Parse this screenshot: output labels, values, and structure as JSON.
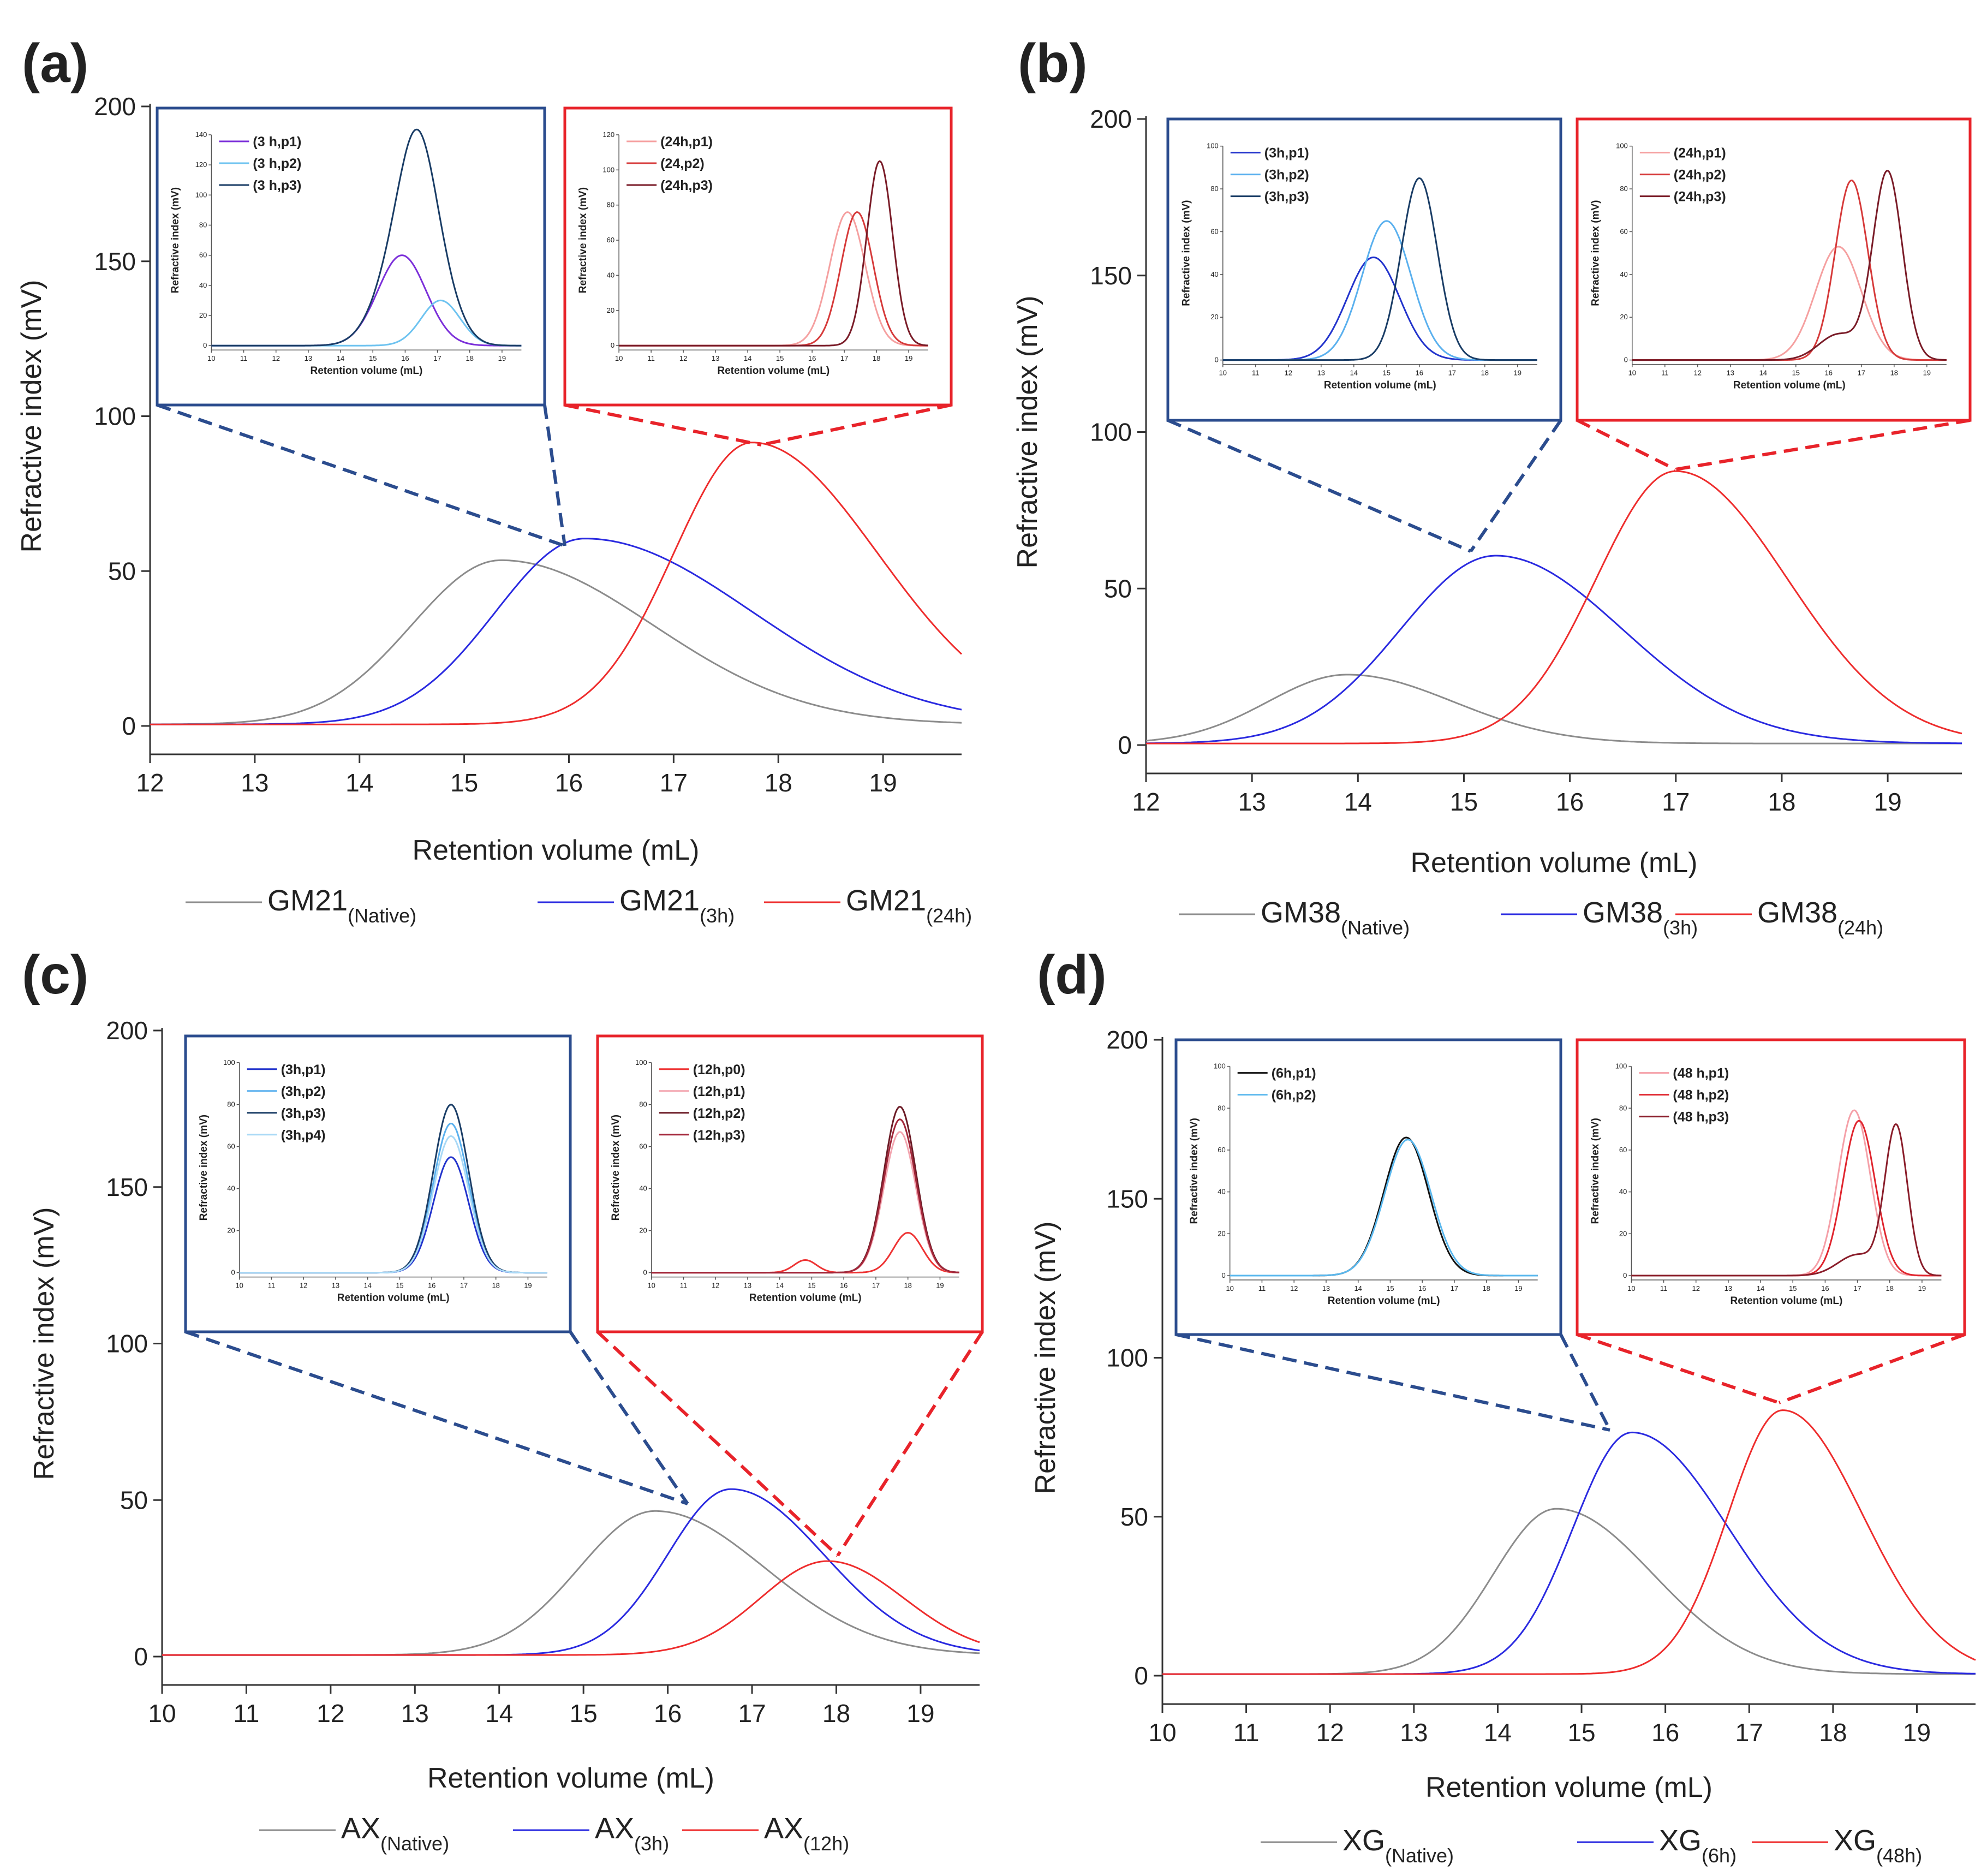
{
  "chart_data": [
    {
      "panel": "(a)",
      "type": "line",
      "xlabel": "Retention volume (mL)",
      "ylabel": "Refractive index (mV)",
      "xlim": [
        12,
        19.75
      ],
      "ylim": [
        0,
        200
      ],
      "xticks": [
        "12",
        "13",
        "14",
        "15",
        "16",
        "17",
        "18",
        "19"
      ],
      "yticks": [
        "0",
        "50",
        "100",
        "150",
        "200"
      ],
      "series": [
        {
          "name": "GM21",
          "sub": "(Native)",
          "color": "#8c8c8c",
          "peaks": [
            [
              53,
              15.35,
              0.85,
              1.45
            ]
          ],
          "base": 0.5
        },
        {
          "name": "GM21",
          "sub": "(3h)",
          "color": "#2a2ae0",
          "peaks": [
            [
              60,
              16.15,
              0.85,
              1.6
            ]
          ],
          "base": 0.5
        },
        {
          "name": "GM21",
          "sub": "(24h)",
          "color": "#ee2d2d",
          "peaks": [
            [
              91,
              17.75,
              0.75,
              1.2
            ]
          ],
          "base": 0.5
        }
      ],
      "insets": [
        {
          "frame": "#2b4c8e",
          "xlabel": "Retention volume (mL)",
          "ylabel": "Refractive index (mV)",
          "xlim": [
            10,
            19.6
          ],
          "ylim": [
            0,
            140
          ],
          "xticks": [
            "10",
            "11",
            "12",
            "13",
            "14",
            "15",
            "16",
            "17",
            "18",
            "19"
          ],
          "yticks": [
            "0",
            "20",
            "40",
            "60",
            "80",
            "100",
            "120",
            "140"
          ],
          "series": [
            {
              "name": "(3 h,p1)",
              "color": "#7b2fd9",
              "peaks": [
                [
                  60,
                  15.9,
                  0.75,
                  0.75
                ]
              ]
            },
            {
              "name": "(3 h,p2)",
              "color": "#6ec3f0",
              "peaks": [
                [
                  30,
                  17.1,
                  0.6,
                  0.6
                ]
              ]
            },
            {
              "name": "(3 h,p3)",
              "color": "#1a3d66",
              "peaks": [
                [
                  60,
                  15.9,
                  0.75,
                  0.75
                ],
                [
                  80,
                  16.4,
                  0.55,
                  0.55
                ],
                [
                  30,
                  17.1,
                  0.6,
                  0.6
                ]
              ]
            }
          ]
        },
        {
          "frame": "#e8232a",
          "xlabel": "Retention volume (mL)",
          "ylabel": "Refractive index (mV)",
          "xlim": [
            10,
            19.6
          ],
          "ylim": [
            0,
            120
          ],
          "xticks": [
            "10",
            "11",
            "12",
            "13",
            "14",
            "15",
            "16",
            "17",
            "18",
            "19"
          ],
          "yticks": [
            "0",
            "20",
            "40",
            "60",
            "80",
            "100",
            "120"
          ],
          "series": [
            {
              "name": "(24h,p1)",
              "color": "#f5a0a0",
              "peaks": [
                [
                  76,
                  17.1,
                  0.55,
                  0.55
                ]
              ]
            },
            {
              "name": "(24,p2)",
              "color": "#d63a3a",
              "peaks": [
                [
                  76,
                  17.4,
                  0.5,
                  0.5
                ]
              ]
            },
            {
              "name": "(24h,p3)",
              "color": "#7a1c28",
              "peaks": [
                [
                  105,
                  18.1,
                  0.4,
                  0.4
                ]
              ]
            }
          ]
        }
      ]
    },
    {
      "panel": "(b)",
      "type": "line",
      "xlabel": "Retention volume (mL)",
      "ylabel": "Refractive index (mV)",
      "xlim": [
        12,
        19.7
      ],
      "ylim": [
        0,
        200
      ],
      "xticks": [
        "12",
        "13",
        "14",
        "15",
        "16",
        "17",
        "18",
        "19"
      ],
      "yticks": [
        "0",
        "50",
        "100",
        "150",
        "200"
      ],
      "series": [
        {
          "name": "GM38",
          "sub": "(Native)",
          "color": "#8c8c8c",
          "peaks": [
            [
              22,
              13.9,
              0.75,
              1.0
            ]
          ],
          "base": 0.5
        },
        {
          "name": "GM38",
          "sub": "(3h)",
          "color": "#2a2ae0",
          "peaks": [
            [
              60,
              15.3,
              0.9,
              1.2
            ]
          ],
          "base": 0.5
        },
        {
          "name": "GM38",
          "sub": "(24h)",
          "color": "#ee2d2d",
          "peaks": [
            [
              87,
              17.0,
              0.75,
              1.05
            ]
          ],
          "base": 0.5
        }
      ],
      "insets": [
        {
          "frame": "#2b4c8e",
          "xlabel": "Retention volume (mL)",
          "ylabel": "Refractive index (mV)",
          "xlim": [
            10,
            19.6
          ],
          "ylim": [
            0,
            100
          ],
          "xticks": [
            "10",
            "11",
            "12",
            "13",
            "14",
            "15",
            "16",
            "17",
            "18",
            "19"
          ],
          "yticks": [
            "0",
            "20",
            "40",
            "60",
            "80",
            "100"
          ],
          "series": [
            {
              "name": "(3h,p1)",
              "color": "#2233cc",
              "peaks": [
                [
                  48,
                  14.6,
                  0.8,
                  0.8
                ]
              ]
            },
            {
              "name": "(3h,p2)",
              "color": "#5ab0ee",
              "peaks": [
                [
                  65,
                  15.0,
                  0.75,
                  0.75
                ]
              ]
            },
            {
              "name": "(3h,p3)",
              "color": "#1a3d66",
              "peaks": [
                [
                  85,
                  16.0,
                  0.55,
                  0.55
                ]
              ]
            }
          ]
        },
        {
          "frame": "#e8232a",
          "xlabel": "Retention volume (mL)",
          "ylabel": "Refractive index (mV)",
          "xlim": [
            10,
            19.6
          ],
          "ylim": [
            0,
            100
          ],
          "xticks": [
            "10",
            "11",
            "12",
            "13",
            "14",
            "15",
            "16",
            "17",
            "18",
            "19"
          ],
          "yticks": [
            "0",
            "20",
            "40",
            "60",
            "80",
            "100"
          ],
          "series": [
            {
              "name": "(24h,p1)",
              "color": "#f5a0a0",
              "peaks": [
                [
                  53,
                  16.3,
                  0.7,
                  0.7
                ]
              ]
            },
            {
              "name": "(24h,p2)",
              "color": "#d63a3a",
              "peaks": [
                [
                  84,
                  16.7,
                  0.5,
                  0.5
                ]
              ]
            },
            {
              "name": "(24h,p3)",
              "color": "#7a1c28",
              "peaks": [
                [
                  88,
                  17.8,
                  0.45,
                  0.45
                ],
                [
                  12,
                  16.3,
                  0.6,
                  0.6
                ]
              ]
            }
          ]
        }
      ]
    },
    {
      "panel": "(c)",
      "type": "line",
      "xlabel": "Retention volume (mL)",
      "ylabel": "Refractive index (mV)",
      "xlim": [
        10,
        19.7
      ],
      "ylim": [
        0,
        200
      ],
      "xticks": [
        "10",
        "11",
        "12",
        "13",
        "14",
        "15",
        "16",
        "17",
        "18",
        "19"
      ],
      "yticks": [
        "0",
        "50",
        "100",
        "150",
        "200"
      ],
      "series": [
        {
          "name": "AX",
          "sub": "(Native)",
          "color": "#8c8c8c",
          "peaks": [
            [
              46,
              15.85,
              0.9,
              1.3
            ]
          ],
          "base": 0.5
        },
        {
          "name": "AX",
          "sub": "(3h)",
          "color": "#2a2ae0",
          "peaks": [
            [
              53,
              16.75,
              0.75,
              1.1
            ]
          ],
          "base": 0.5
        },
        {
          "name": "AX",
          "sub": "(12h)",
          "color": "#ee2d2d",
          "peaks": [
            [
              30,
              17.9,
              0.8,
              0.9
            ]
          ],
          "base": 0.5
        }
      ],
      "insets": [
        {
          "frame": "#2b4c8e",
          "xlabel": "Retention volume (mL)",
          "ylabel": "Refractive index (mV)",
          "xlim": [
            10,
            19.6
          ],
          "ylim": [
            0,
            100
          ],
          "xticks": [
            "10",
            "11",
            "12",
            "13",
            "14",
            "15",
            "16",
            "17",
            "18",
            "19"
          ],
          "yticks": [
            "0",
            "20",
            "40",
            "60",
            "80",
            "100"
          ],
          "series": [
            {
              "name": "(3h,p1)",
              "color": "#2233cc",
              "peaks": [
                [
                  55,
                  16.6,
                  0.55,
                  0.55
                ]
              ]
            },
            {
              "name": "(3h,p2)",
              "color": "#5ab0ee",
              "peaks": [
                [
                  71,
                  16.6,
                  0.55,
                  0.55
                ]
              ]
            },
            {
              "name": "(3h,p3)",
              "color": "#1a3d66",
              "peaks": [
                [
                  80,
                  16.6,
                  0.55,
                  0.55
                ]
              ]
            },
            {
              "name": "(3h,p4)",
              "color": "#a9d9f6",
              "peaks": [
                [
                  65,
                  16.6,
                  0.55,
                  0.55
                ]
              ]
            }
          ]
        },
        {
          "frame": "#e8232a",
          "xlabel": "Retention volume (mL)",
          "ylabel": "Refractive index (mV)",
          "xlim": [
            10,
            19.6
          ],
          "ylim": [
            0,
            100
          ],
          "xticks": [
            "10",
            "11",
            "12",
            "13",
            "14",
            "15",
            "16",
            "17",
            "18",
            "19"
          ],
          "yticks": [
            "0",
            "20",
            "40",
            "60",
            "80",
            "100"
          ],
          "series": [
            {
              "name": "(12h,p0)",
              "color": "#ee3333",
              "peaks": [
                [
                  6,
                  14.8,
                  0.35,
                  0.35
                ],
                [
                  19,
                  18.0,
                  0.45,
                  0.45
                ]
              ]
            },
            {
              "name": "(12h,p1)",
              "color": "#f3a6b0",
              "peaks": [
                [
                  67,
                  17.75,
                  0.5,
                  0.5
                ]
              ]
            },
            {
              "name": "(12h,p2)",
              "color": "#6b1a25",
              "peaks": [
                [
                  79,
                  17.75,
                  0.5,
                  0.5
                ]
              ]
            },
            {
              "name": "(12h,p3)",
              "color": "#a3273a",
              "peaks": [
                [
                  73,
                  17.75,
                  0.5,
                  0.5
                ]
              ]
            }
          ]
        }
      ]
    },
    {
      "panel": "(d)",
      "type": "line",
      "xlabel": "Retention volume (mL)",
      "ylabel": "Refractive index (mV)",
      "xlim": [
        10,
        19.7
      ],
      "ylim": [
        0,
        200
      ],
      "xticks": [
        "10",
        "11",
        "12",
        "13",
        "14",
        "15",
        "16",
        "17",
        "18",
        "19"
      ],
      "yticks": [
        "0",
        "50",
        "100",
        "150",
        "200"
      ],
      "series": [
        {
          "name": "XG",
          "sub": "(Native)",
          "color": "#8c8c8c",
          "peaks": [
            [
              52,
              14.7,
              0.75,
              1.15
            ]
          ],
          "base": 0.5
        },
        {
          "name": "XG",
          "sub": "(6h)",
          "color": "#2a2ae0",
          "peaks": [
            [
              76,
              15.6,
              0.7,
              1.15
            ]
          ],
          "base": 0.5
        },
        {
          "name": "XG",
          "sub": "(48h)",
          "color": "#ee2d2d",
          "peaks": [
            [
              83,
              17.4,
              0.65,
              0.95
            ]
          ],
          "base": 0.5
        }
      ],
      "insets": [
        {
          "frame": "#2b4c8e",
          "xlabel": "Retention volume (mL)",
          "ylabel": "Refractive index (mV)",
          "xlim": [
            10,
            19.6
          ],
          "ylim": [
            0,
            100
          ],
          "xticks": [
            "10",
            "11",
            "12",
            "13",
            "14",
            "15",
            "16",
            "17",
            "18",
            "19"
          ],
          "yticks": [
            "0",
            "20",
            "40",
            "60",
            "80",
            "100"
          ],
          "series": [
            {
              "name": "(6h,p1)",
              "color": "#111111",
              "peaks": [
                [
                  66,
                  15.5,
                  0.7,
                  0.7
                ]
              ]
            },
            {
              "name": "(6h,p2)",
              "color": "#5ab8ee",
              "peaks": [
                [
                  65,
                  15.55,
                  0.72,
                  0.72
                ]
              ]
            }
          ]
        },
        {
          "frame": "#e8232a",
          "xlabel": "Retention volume (mL)",
          "ylabel": "Refractive index (mV)",
          "xlim": [
            10,
            19.6
          ],
          "ylim": [
            0,
            100
          ],
          "xticks": [
            "10",
            "11",
            "12",
            "13",
            "14",
            "15",
            "16",
            "17",
            "18",
            "19"
          ],
          "yticks": [
            "0",
            "20",
            "40",
            "60",
            "80",
            "100"
          ],
          "series": [
            {
              "name": "(48 h,p1)",
              "color": "#f5a0a8",
              "peaks": [
                [
                  79,
                  16.9,
                  0.5,
                  0.5
                ]
              ]
            },
            {
              "name": "(48 h,p2)",
              "color": "#e0252e",
              "peaks": [
                [
                  74,
                  17.05,
                  0.5,
                  0.5
                ]
              ]
            },
            {
              "name": "(48 h,p3)",
              "color": "#8a1d2a",
              "peaks": [
                [
                  71,
                  18.2,
                  0.35,
                  0.35
                ],
                [
                  10,
                  17.0,
                  0.6,
                  0.6
                ]
              ]
            }
          ]
        }
      ]
    }
  ]
}
